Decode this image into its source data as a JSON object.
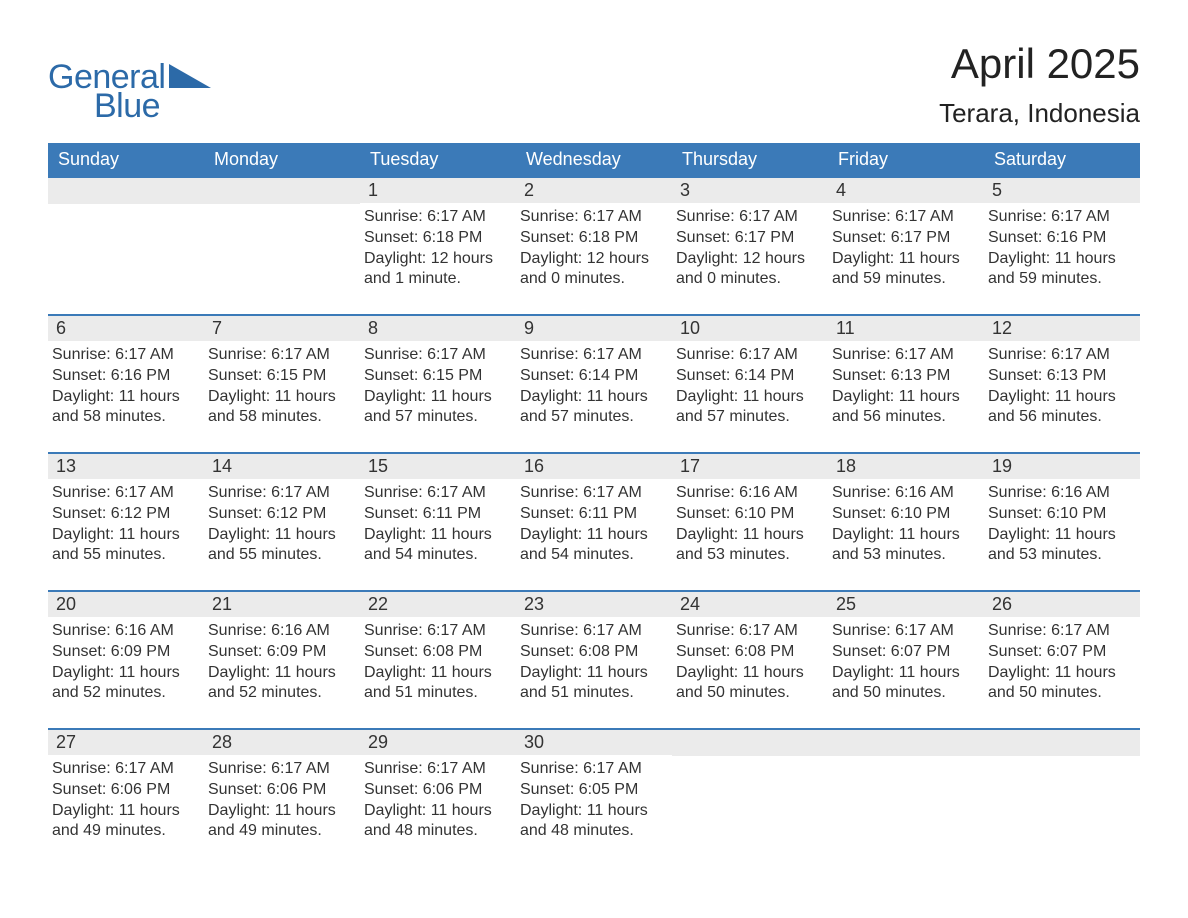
{
  "logo": {
    "text1": "General",
    "text2": "Blue"
  },
  "title": "April 2025",
  "location": "Terara, Indonesia",
  "colors": {
    "header_bg": "#3b7ab8",
    "header_text": "#ffffff",
    "daynum_bg": "#ebebeb",
    "border": "#3b7ab8",
    "logo": "#2c6aa8",
    "body_text": "#333333",
    "page_bg": "#ffffff"
  },
  "typography": {
    "title_fontsize": 42,
    "location_fontsize": 26,
    "weekday_fontsize": 18,
    "daynum_fontsize": 18,
    "body_fontsize": 16,
    "logo_fontsize": 34
  },
  "weekdays": [
    "Sunday",
    "Monday",
    "Tuesday",
    "Wednesday",
    "Thursday",
    "Friday",
    "Saturday"
  ],
  "weeks": [
    [
      {
        "n": "",
        "sunrise": "",
        "sunset": "",
        "daylight": ""
      },
      {
        "n": "",
        "sunrise": "",
        "sunset": "",
        "daylight": ""
      },
      {
        "n": "1",
        "sunrise": "Sunrise: 6:17 AM",
        "sunset": "Sunset: 6:18 PM",
        "daylight": "Daylight: 12 hours and 1 minute."
      },
      {
        "n": "2",
        "sunrise": "Sunrise: 6:17 AM",
        "sunset": "Sunset: 6:18 PM",
        "daylight": "Daylight: 12 hours and 0 minutes."
      },
      {
        "n": "3",
        "sunrise": "Sunrise: 6:17 AM",
        "sunset": "Sunset: 6:17 PM",
        "daylight": "Daylight: 12 hours and 0 minutes."
      },
      {
        "n": "4",
        "sunrise": "Sunrise: 6:17 AM",
        "sunset": "Sunset: 6:17 PM",
        "daylight": "Daylight: 11 hours and 59 minutes."
      },
      {
        "n": "5",
        "sunrise": "Sunrise: 6:17 AM",
        "sunset": "Sunset: 6:16 PM",
        "daylight": "Daylight: 11 hours and 59 minutes."
      }
    ],
    [
      {
        "n": "6",
        "sunrise": "Sunrise: 6:17 AM",
        "sunset": "Sunset: 6:16 PM",
        "daylight": "Daylight: 11 hours and 58 minutes."
      },
      {
        "n": "7",
        "sunrise": "Sunrise: 6:17 AM",
        "sunset": "Sunset: 6:15 PM",
        "daylight": "Daylight: 11 hours and 58 minutes."
      },
      {
        "n": "8",
        "sunrise": "Sunrise: 6:17 AM",
        "sunset": "Sunset: 6:15 PM",
        "daylight": "Daylight: 11 hours and 57 minutes."
      },
      {
        "n": "9",
        "sunrise": "Sunrise: 6:17 AM",
        "sunset": "Sunset: 6:14 PM",
        "daylight": "Daylight: 11 hours and 57 minutes."
      },
      {
        "n": "10",
        "sunrise": "Sunrise: 6:17 AM",
        "sunset": "Sunset: 6:14 PM",
        "daylight": "Daylight: 11 hours and 57 minutes."
      },
      {
        "n": "11",
        "sunrise": "Sunrise: 6:17 AM",
        "sunset": "Sunset: 6:13 PM",
        "daylight": "Daylight: 11 hours and 56 minutes."
      },
      {
        "n": "12",
        "sunrise": "Sunrise: 6:17 AM",
        "sunset": "Sunset: 6:13 PM",
        "daylight": "Daylight: 11 hours and 56 minutes."
      }
    ],
    [
      {
        "n": "13",
        "sunrise": "Sunrise: 6:17 AM",
        "sunset": "Sunset: 6:12 PM",
        "daylight": "Daylight: 11 hours and 55 minutes."
      },
      {
        "n": "14",
        "sunrise": "Sunrise: 6:17 AM",
        "sunset": "Sunset: 6:12 PM",
        "daylight": "Daylight: 11 hours and 55 minutes."
      },
      {
        "n": "15",
        "sunrise": "Sunrise: 6:17 AM",
        "sunset": "Sunset: 6:11 PM",
        "daylight": "Daylight: 11 hours and 54 minutes."
      },
      {
        "n": "16",
        "sunrise": "Sunrise: 6:17 AM",
        "sunset": "Sunset: 6:11 PM",
        "daylight": "Daylight: 11 hours and 54 minutes."
      },
      {
        "n": "17",
        "sunrise": "Sunrise: 6:16 AM",
        "sunset": "Sunset: 6:10 PM",
        "daylight": "Daylight: 11 hours and 53 minutes."
      },
      {
        "n": "18",
        "sunrise": "Sunrise: 6:16 AM",
        "sunset": "Sunset: 6:10 PM",
        "daylight": "Daylight: 11 hours and 53 minutes."
      },
      {
        "n": "19",
        "sunrise": "Sunrise: 6:16 AM",
        "sunset": "Sunset: 6:10 PM",
        "daylight": "Daylight: 11 hours and 53 minutes."
      }
    ],
    [
      {
        "n": "20",
        "sunrise": "Sunrise: 6:16 AM",
        "sunset": "Sunset: 6:09 PM",
        "daylight": "Daylight: 11 hours and 52 minutes."
      },
      {
        "n": "21",
        "sunrise": "Sunrise: 6:16 AM",
        "sunset": "Sunset: 6:09 PM",
        "daylight": "Daylight: 11 hours and 52 minutes."
      },
      {
        "n": "22",
        "sunrise": "Sunrise: 6:17 AM",
        "sunset": "Sunset: 6:08 PM",
        "daylight": "Daylight: 11 hours and 51 minutes."
      },
      {
        "n": "23",
        "sunrise": "Sunrise: 6:17 AM",
        "sunset": "Sunset: 6:08 PM",
        "daylight": "Daylight: 11 hours and 51 minutes."
      },
      {
        "n": "24",
        "sunrise": "Sunrise: 6:17 AM",
        "sunset": "Sunset: 6:08 PM",
        "daylight": "Daylight: 11 hours and 50 minutes."
      },
      {
        "n": "25",
        "sunrise": "Sunrise: 6:17 AM",
        "sunset": "Sunset: 6:07 PM",
        "daylight": "Daylight: 11 hours and 50 minutes."
      },
      {
        "n": "26",
        "sunrise": "Sunrise: 6:17 AM",
        "sunset": "Sunset: 6:07 PM",
        "daylight": "Daylight: 11 hours and 50 minutes."
      }
    ],
    [
      {
        "n": "27",
        "sunrise": "Sunrise: 6:17 AM",
        "sunset": "Sunset: 6:06 PM",
        "daylight": "Daylight: 11 hours and 49 minutes."
      },
      {
        "n": "28",
        "sunrise": "Sunrise: 6:17 AM",
        "sunset": "Sunset: 6:06 PM",
        "daylight": "Daylight: 11 hours and 49 minutes."
      },
      {
        "n": "29",
        "sunrise": "Sunrise: 6:17 AM",
        "sunset": "Sunset: 6:06 PM",
        "daylight": "Daylight: 11 hours and 48 minutes."
      },
      {
        "n": "30",
        "sunrise": "Sunrise: 6:17 AM",
        "sunset": "Sunset: 6:05 PM",
        "daylight": "Daylight: 11 hours and 48 minutes."
      },
      {
        "n": "",
        "sunrise": "",
        "sunset": "",
        "daylight": ""
      },
      {
        "n": "",
        "sunrise": "",
        "sunset": "",
        "daylight": ""
      },
      {
        "n": "",
        "sunrise": "",
        "sunset": "",
        "daylight": ""
      }
    ]
  ]
}
